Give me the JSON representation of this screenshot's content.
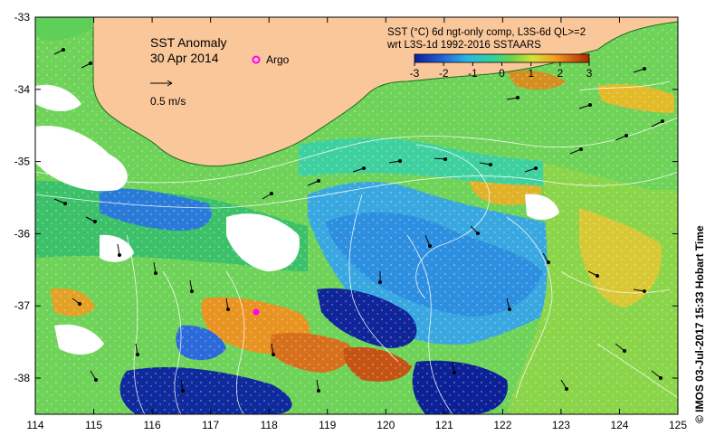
{
  "title": "SST Anomaly",
  "date": "30 Apr 2014",
  "argo_label": "Argo",
  "velocity_scale_label": "0.5 m/s",
  "colorbar": {
    "title_line1": "SST (°C) 6d ngt-only comp, L3S-6d QL>=2",
    "title_line2": "wrt L3S-1d 1992-2016 SSTAARS",
    "ticks": [
      "-3",
      "-2",
      "-1",
      "0",
      "1",
      "2",
      "3"
    ]
  },
  "credit": "© IMOS 03-Jul-2017 15:33 Hobart Time",
  "axes": {
    "lon_ticks": [
      "114",
      "115",
      "116",
      "117",
      "118",
      "119",
      "120",
      "121",
      "122",
      "123",
      "124",
      "125"
    ],
    "lat_ticks": [
      "-33",
      "-34",
      "-35",
      "-36",
      "-37",
      "-38"
    ]
  },
  "colors": {
    "land": "#f9c79a",
    "argo_marker": "#ff00ff",
    "cold": "#0a1f9a",
    "neutral": "#5fcf5a",
    "warm": "#c23a00"
  }
}
